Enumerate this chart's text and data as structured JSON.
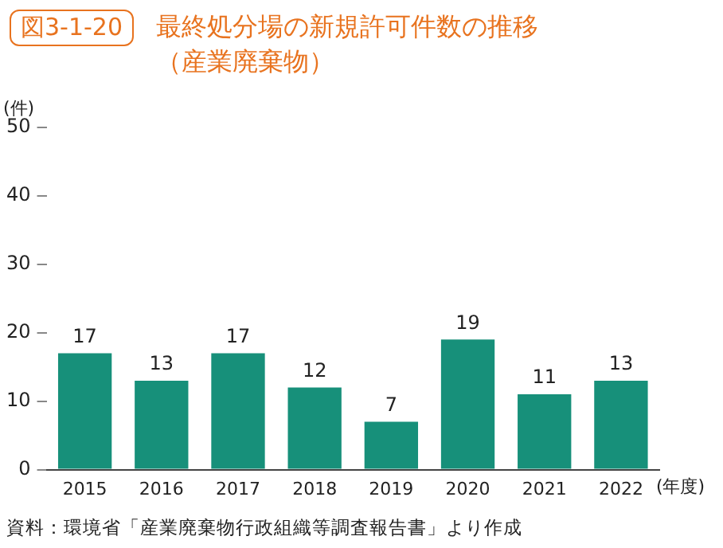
{
  "chart_data": {
    "type": "bar",
    "title": "最終処分場の新規許可件数の推移",
    "subtitle": "（産業廃棄物）",
    "ylabel": "(件)",
    "xlabel": "(年度)",
    "categories": [
      "2015",
      "2016",
      "2017",
      "2018",
      "2019",
      "2020",
      "2021",
      "2022"
    ],
    "values": [
      17,
      13,
      17,
      12,
      7,
      19,
      11,
      13
    ],
    "color": "#17907a",
    "ylim": [
      0,
      50
    ],
    "yticks": [
      0,
      10,
      20,
      30,
      40,
      50
    ],
    "grid": false,
    "legend": false,
    "data_labels": true,
    "annotations": [
      "図3-1-20",
      "資料：環境省「産業廃棄物行政組織等調査報告書」より作成"
    ]
  }
}
